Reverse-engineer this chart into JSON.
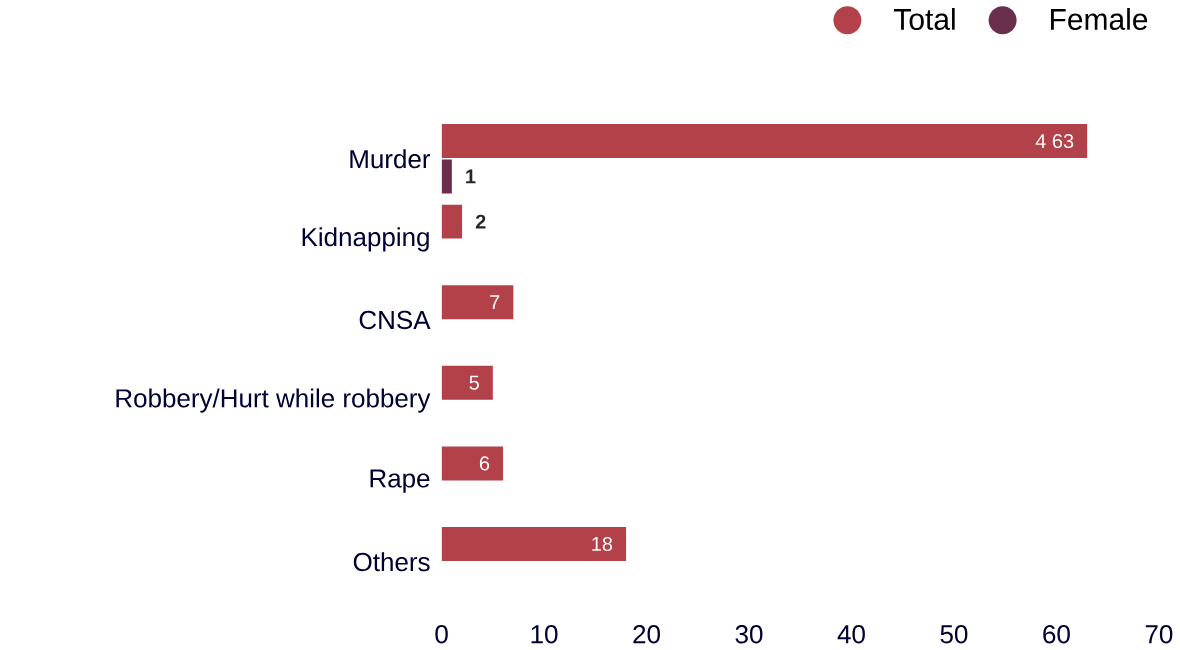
{
  "chart_data": {
    "type": "bar",
    "orientation": "horizontal",
    "categories": [
      "Murder",
      "Kidnapping",
      "CNSA",
      "Robbery/Hurt while robbery",
      "Rape",
      "Others"
    ],
    "series": [
      {
        "name": "Total",
        "color": "#b3414a",
        "values": [
          63,
          2,
          7,
          5,
          6,
          18
        ],
        "value_labels": [
          "4 63",
          "2",
          "7",
          "5",
          "6",
          "18"
        ]
      },
      {
        "name": "Female",
        "color": "#6a2f4b",
        "values": [
          1,
          null,
          null,
          null,
          null,
          null
        ],
        "value_labels": [
          "1",
          null,
          null,
          null,
          null,
          null
        ]
      }
    ],
    "xlim": [
      0,
      70
    ],
    "xticks": [
      0,
      10,
      20,
      30,
      40,
      50,
      60,
      70
    ],
    "legend": "top right"
  }
}
